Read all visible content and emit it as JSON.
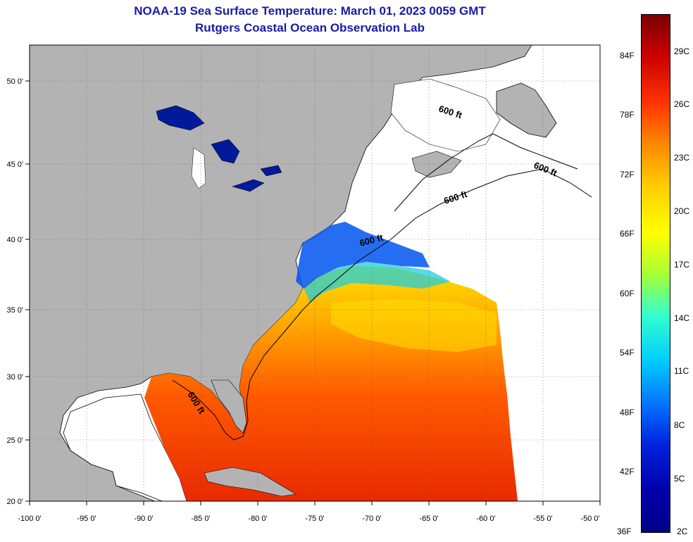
{
  "title": {
    "line1": "NOAA-19 Sea Surface Temperature:  March 01, 2023 0059 GMT",
    "line2": "Rutgers Coastal Ocean Observation Lab"
  },
  "axes": {
    "longitude_labels": [
      "-100 0'",
      "-95 0'",
      "-90 0'",
      "-85 0'",
      "-80 0'",
      "-75 0'",
      "-70 0'",
      "-65 0'",
      "-60 0'",
      "-55 0'",
      "-50 0'"
    ],
    "latitude_labels": [
      "50 0'",
      "45 0'",
      "40 0'",
      "35 0'",
      "30 0'",
      "25 0'",
      "20 0'"
    ]
  },
  "contour_label": "600 ft",
  "colorbar": {
    "fahrenheit": [
      "84F",
      "78F",
      "72F",
      "66F",
      "60F",
      "54F",
      "48F",
      "42F",
      "36F"
    ],
    "celsius": [
      "29C",
      "26C",
      "23C",
      "20C",
      "17C",
      "14C",
      "11C",
      "8C",
      "5C",
      "2C"
    ],
    "colors": [
      "#7a0000",
      "#cc0000",
      "#ff3300",
      "#ff8800",
      "#ffcc00",
      "#ffff00",
      "#aaff33",
      "#33ffcc",
      "#00ccff",
      "#0077ff",
      "#0022dd",
      "#0000aa",
      "#000088"
    ]
  },
  "legend_colors": {
    "land": "#b3b3b3",
    "no_data": "#ffffff"
  }
}
